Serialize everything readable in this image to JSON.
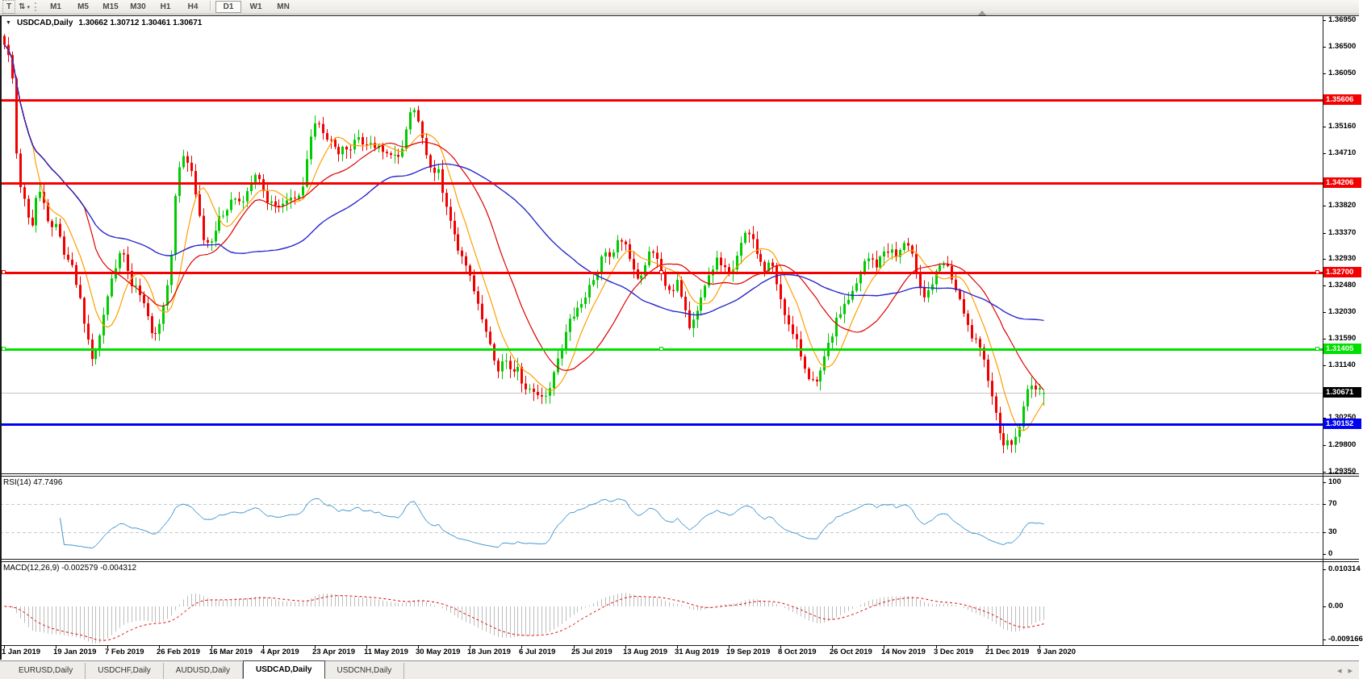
{
  "toolbar": {
    "text_tool_label": "T",
    "arrows_icon_glyph": "⇅",
    "caret_icon_glyph": "▾",
    "timeframes": [
      "M1",
      "M5",
      "M15",
      "M30",
      "H1",
      "H4",
      "D1",
      "W1",
      "MN"
    ],
    "active_timeframe": "D1"
  },
  "chart": {
    "collapse_icon_glyph": "▼",
    "title_symbol": "USDCAD,Daily",
    "title_ohlc": "1.30662 1.30712 1.30461 1.30671"
  },
  "chart_data": {
    "type": "candlestick",
    "symbol": "USDCAD",
    "timeframe": "Daily",
    "current_ohlc": {
      "open": 1.30662,
      "high": 1.30712,
      "low": 1.30461,
      "close": 1.30671
    },
    "price_axis_range": {
      "top": 1.37014,
      "bottom": 1.2932
    },
    "price_axis_ticks": [
      "1.36950",
      "1.36500",
      "1.36050",
      "1.35160",
      "1.34710",
      "1.33820",
      "1.33370",
      "1.32930",
      "1.32480",
      "1.32030",
      "1.31590",
      "1.31140",
      "1.30250",
      "1.29800",
      "1.29350"
    ],
    "date_axis_ticks": [
      "1 Jan 2019",
      "19 Jan 2019",
      "7 Feb 2019",
      "26 Feb 2019",
      "16 Mar 2019",
      "4 Apr 2019",
      "23 Apr 2019",
      "11 May 2019",
      "30 May 2019",
      "18 Jun 2019",
      "6 Jul 2019",
      "25 Jul 2019",
      "13 Aug 2019",
      "31 Aug 2019",
      "19 Sep 2019",
      "8 Oct 2019",
      "26 Oct 2019",
      "14 Nov 2019",
      "3 Dec 2019",
      "21 Dec 2019",
      "9 Jan 2020"
    ],
    "horizontal_lines": [
      {
        "price": 1.35606,
        "label": "1.35606",
        "color": "#f40000",
        "selected": false
      },
      {
        "price": 1.34206,
        "label": "1.34206",
        "color": "#f40000",
        "selected": false
      },
      {
        "price": 1.327,
        "label": "1.32700",
        "color": "#f40000",
        "selected": true
      },
      {
        "price": 1.31405,
        "label": "1.31405",
        "color": "#00df00",
        "selected": true
      },
      {
        "price": 1.30152,
        "label": "1.30152",
        "color": "#0000f2",
        "selected": false
      }
    ],
    "current_price": {
      "value": 1.30671,
      "label": "1.30671",
      "line_color": "#c4c4c4",
      "tag_bg": "#000000"
    },
    "candles": {
      "count": 262,
      "up_color": "#00cb00",
      "down_color": "#f20000",
      "closes_sampled": [
        1.366,
        1.363,
        1.3425,
        1.3395,
        1.334,
        1.341,
        1.339,
        1.334,
        1.3355,
        1.33,
        1.329,
        1.324,
        1.3185,
        1.3125,
        1.315,
        1.3205,
        1.325,
        1.3295,
        1.33,
        1.3245,
        1.324,
        1.321,
        1.3175,
        1.317,
        1.322,
        1.329,
        1.344,
        1.347,
        1.344,
        1.338,
        1.332,
        1.3325,
        1.3355,
        1.337,
        1.339,
        1.34,
        1.3385,
        1.342,
        1.3435,
        1.3395,
        1.339,
        1.3375,
        1.338,
        1.3395,
        1.3385,
        1.342,
        1.3505,
        1.353,
        1.3495,
        1.349,
        1.3465,
        1.348,
        1.3475,
        1.35,
        1.3485,
        1.3495,
        1.348,
        1.3465,
        1.3475,
        1.346,
        1.348,
        1.3545,
        1.353,
        1.348,
        1.344,
        1.3445,
        1.339,
        1.336,
        1.3315,
        1.3285,
        1.326,
        1.3215,
        1.318,
        1.314,
        1.3105,
        1.3125,
        1.31,
        1.3115,
        1.307,
        1.308,
        1.3065,
        1.306,
        1.3085,
        1.313,
        1.3155,
        1.319,
        1.3215,
        1.322,
        1.325,
        1.327,
        1.3305,
        1.329,
        1.332,
        1.3325,
        1.329,
        1.3255,
        1.328,
        1.3305,
        1.329,
        1.3255,
        1.323,
        1.326,
        1.321,
        1.317,
        1.3205,
        1.3245,
        1.327,
        1.329,
        1.3275,
        1.326,
        1.33,
        1.333,
        1.3335,
        1.3305,
        1.327,
        1.329,
        1.325,
        1.321,
        1.317,
        1.315,
        1.3115,
        1.309,
        1.308,
        1.312,
        1.3155,
        1.319,
        1.3215,
        1.323,
        1.325,
        1.3285,
        1.3295,
        1.328,
        1.3305,
        1.331,
        1.3295,
        1.332,
        1.3305,
        1.327,
        1.323,
        1.3245,
        1.327,
        1.3285,
        1.327,
        1.3235,
        1.32,
        1.3165,
        1.315,
        1.312,
        1.308,
        1.302,
        1.2985,
        1.298,
        1.2995,
        1.304,
        1.309,
        1.307,
        1.3067
      ]
    },
    "moving_averages": [
      {
        "period": 8,
        "color": "#ff9e00"
      },
      {
        "period": 21,
        "color": "#e00000"
      },
      {
        "period": 55,
        "color": "#2a2acd"
      }
    ],
    "rsi": {
      "label": "RSI(14) 47.7496",
      "period": 14,
      "value": 47.7496,
      "axis_ticks": [
        "100",
        "70",
        "30",
        "0"
      ],
      "levels": [
        70,
        30
      ],
      "line_color": "#3b94d0"
    },
    "macd": {
      "label": "MACD(12,26,9) -0.002579 -0.004312",
      "fast": 12,
      "slow": 26,
      "signal": 9,
      "value": -0.002579,
      "signal_value": -0.004312,
      "axis_ticks": [
        {
          "text": "0.010314",
          "v": 0.010314
        },
        {
          "text": "0.00",
          "v": 0
        },
        {
          "text": "-0.009166",
          "v": -0.009166
        }
      ],
      "histogram_color": "#bdbdbd",
      "signal_color": "#e00000"
    }
  },
  "tabs": {
    "items": [
      "EURUSD,Daily",
      "USDCHF,Daily",
      "AUDUSD,Daily",
      "USDCAD,Daily",
      "USDCNH,Daily"
    ],
    "active": "USDCAD,Daily",
    "left_arrow_glyph": "◂",
    "right_arrow_glyph": "▸"
  }
}
